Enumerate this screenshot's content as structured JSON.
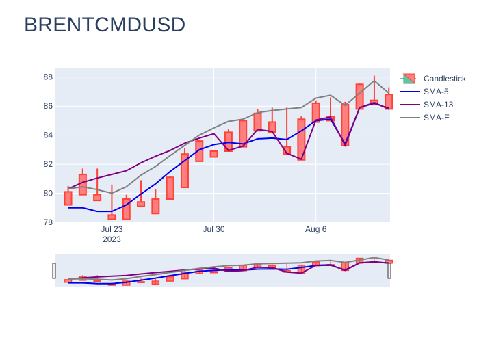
{
  "title": "BRENTCMDUSD",
  "colors": {
    "plot_bg": "#e5ecf6",
    "grid": "#ffffff",
    "candle_up_fill": "#66c2a5",
    "candle_up_line": "#3d9970",
    "candle_down_fill": "#ff7f7f",
    "candle_down_line": "#ff4136",
    "sma5": "#0000ee",
    "sma13": "#800080",
    "smae": "#808080",
    "text": "#2a3f5f"
  },
  "chart_data": {
    "type": "candlestick",
    "title": "BRENTCMDUSD",
    "x_ticks": [
      {
        "date": "2023-07-23",
        "label": "Jul 23",
        "sublabel": "2023"
      },
      {
        "date": "2023-07-30",
        "label": "Jul 30",
        "sublabel": ""
      },
      {
        "date": "2023-08-06",
        "label": "Aug 6",
        "sublabel": ""
      }
    ],
    "x_range": [
      "2023-07-19 14:00",
      "2023-08-11 14:00"
    ],
    "y_range": [
      78,
      88.6
    ],
    "y_ticks": [
      78,
      80,
      82,
      84,
      86,
      88
    ],
    "grid": true,
    "legend_position": "right",
    "legend": [
      "Candlestick",
      "SMA-5",
      "SMA-13",
      "SMA-E"
    ],
    "candles": [
      {
        "date": "2023-07-20",
        "open": 80.1,
        "high": 80.5,
        "low": 79.2,
        "close": 79.2
      },
      {
        "date": "2023-07-21",
        "open": 81.3,
        "high": 81.7,
        "low": 79.9,
        "close": 79.9
      },
      {
        "date": "2023-07-22",
        "open": 79.9,
        "high": 81.7,
        "low": 79.5,
        "close": 79.5
      },
      {
        "date": "2023-07-23",
        "open": 78.5,
        "high": 80.6,
        "low": 78.2,
        "close": 78.2
      },
      {
        "date": "2023-07-24",
        "open": 79.6,
        "high": 79.9,
        "low": 78.2,
        "close": 78.2
      },
      {
        "date": "2023-07-25",
        "open": 79.4,
        "high": 80.9,
        "low": 79.1,
        "close": 79.1
      },
      {
        "date": "2023-07-26",
        "open": 79.6,
        "high": 80.3,
        "low": 78.6,
        "close": 78.6
      },
      {
        "date": "2023-07-27",
        "open": 81.1,
        "high": 81.2,
        "low": 79.6,
        "close": 79.6
      },
      {
        "date": "2023-07-28",
        "open": 82.7,
        "high": 83.1,
        "low": 80.4,
        "close": 80.4
      },
      {
        "date": "2023-07-29",
        "open": 83.6,
        "high": 83.7,
        "low": 82.2,
        "close": 82.2
      },
      {
        "date": "2023-07-30",
        "open": 82.9,
        "high": 82.9,
        "low": 82.5,
        "close": 82.5
      },
      {
        "date": "2023-07-31",
        "open": 84.2,
        "high": 84.4,
        "low": 82.9,
        "close": 82.9
      },
      {
        "date": "2023-08-01",
        "open": 85.0,
        "high": 85.1,
        "low": 83.2,
        "close": 83.2
      },
      {
        "date": "2023-08-02",
        "open": 85.5,
        "high": 85.8,
        "low": 84.3,
        "close": 84.3
      },
      {
        "date": "2023-08-03",
        "open": 84.9,
        "high": 85.9,
        "low": 84.2,
        "close": 84.2
      },
      {
        "date": "2023-08-04",
        "open": 83.2,
        "high": 85.9,
        "low": 82.7,
        "close": 82.7
      },
      {
        "date": "2023-08-05",
        "open": 85.1,
        "high": 85.3,
        "low": 82.3,
        "close": 82.3
      },
      {
        "date": "2023-08-06",
        "open": 86.2,
        "high": 86.4,
        "low": 84.9,
        "close": 84.9
      },
      {
        "date": "2023-08-07",
        "open": 85.3,
        "high": 86.6,
        "low": 85.0,
        "close": 85.0
      },
      {
        "date": "2023-08-08",
        "open": 86.1,
        "high": 86.3,
        "low": 83.3,
        "close": 83.3
      },
      {
        "date": "2023-08-09",
        "open": 87.5,
        "high": 87.6,
        "low": 85.8,
        "close": 85.8
      },
      {
        "date": "2023-08-10",
        "open": 86.4,
        "high": 88.1,
        "low": 86.1,
        "close": 86.1
      },
      {
        "date": "2023-08-11",
        "open": 86.8,
        "high": 87.3,
        "low": 85.8,
        "close": 85.8
      }
    ],
    "series": [
      {
        "name": "SMA-5",
        "color": "#0000ee",
        "values": [
          79.0,
          79.0,
          78.75,
          78.75,
          79.2,
          79.95,
          80.65,
          81.5,
          82.25,
          83.0,
          83.35,
          83.5,
          83.4,
          83.75,
          83.8,
          83.7,
          84.3,
          85.0,
          85.1,
          83.4,
          85.9,
          86.2,
          85.85
        ]
      },
      {
        "name": "SMA-13",
        "color": "#800080",
        "values": [
          80.3,
          80.75,
          81.05,
          81.3,
          81.55,
          82.1,
          82.55,
          82.95,
          83.45,
          83.8,
          84.1,
          82.95,
          83.25,
          84.4,
          84.25,
          82.75,
          82.35,
          85.05,
          85.25,
          83.3,
          85.9,
          86.25,
          85.8
        ]
      },
      {
        "name": "SMA-E",
        "color": "#808080",
        "values": [
          80.3,
          80.45,
          80.25,
          80.0,
          80.45,
          81.25,
          81.85,
          82.6,
          83.3,
          84.0,
          84.5,
          84.95,
          85.1,
          85.55,
          85.7,
          85.8,
          85.9,
          86.55,
          86.75,
          86.05,
          86.9,
          87.75,
          86.9
        ]
      }
    ]
  }
}
